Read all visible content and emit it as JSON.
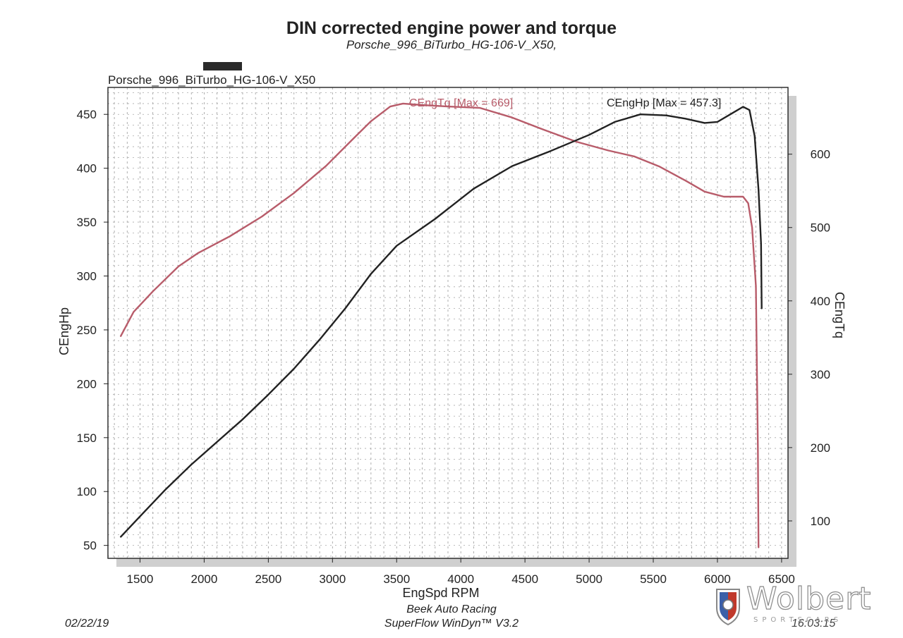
{
  "header": {
    "title": "DIN corrected engine power and torque",
    "subtitle": "Porsche_996_BiTurbo_HG-106-V_X50,",
    "run_label": "Porsche_996_BiTurbo_HG-106-V_X50"
  },
  "footer": {
    "date": "02/22/19",
    "shop": "Beek Auto Racing",
    "software": "SuperFlow WinDyn™ V3.2",
    "time": "16:03:15"
  },
  "logo": {
    "text": "Wolbert",
    "subtext": "SPORTSCARS"
  },
  "chart_data": {
    "type": "line",
    "xlabel": "EngSpd RPM",
    "ylabel": "CEngHp",
    "y2label": "CEngTq",
    "xlim": [
      1250,
      6550
    ],
    "ylim": [
      38,
      475
    ],
    "y2lim": [
      49,
      691
    ],
    "x_ticks": [
      1500,
      2000,
      2500,
      3000,
      3500,
      4000,
      4500,
      5000,
      5500,
      6000,
      6500
    ],
    "y_ticks": [
      50,
      100,
      150,
      200,
      250,
      300,
      350,
      400,
      450
    ],
    "y2_ticks": [
      100,
      200,
      300,
      400,
      500,
      600
    ],
    "grid": true,
    "series": [
      {
        "name": "CEngTq",
        "axis": "right",
        "color": "#b85c6a",
        "label": "CEngTq [Max = 669]",
        "x": [
          1350,
          1450,
          1600,
          1800,
          1950,
          2200,
          2450,
          2700,
          2950,
          3150,
          3300,
          3450,
          3550,
          3700,
          3900,
          4150,
          4400,
          4650,
          4900,
          5150,
          5350,
          5550,
          5750,
          5900,
          6050,
          6200,
          6240,
          6270,
          6300,
          6315,
          6320
        ],
        "y": [
          352,
          385,
          413,
          447,
          465,
          488,
          515,
          547,
          584,
          619,
          645,
          665,
          669,
          667,
          665,
          663,
          650,
          633,
          617,
          605,
          597,
          583,
          564,
          549,
          542,
          542,
          533,
          500,
          420,
          200,
          64
        ]
      },
      {
        "name": "CEngHp",
        "axis": "left",
        "color": "#222222",
        "label": "CEngHp [Max = 457.3]",
        "x": [
          1350,
          1500,
          1700,
          1900,
          2100,
          2300,
          2500,
          2700,
          2900,
          3100,
          3300,
          3500,
          3800,
          4100,
          4400,
          4700,
          5000,
          5200,
          5400,
          5600,
          5750,
          5900,
          6000,
          6100,
          6200,
          6250,
          6290,
          6320,
          6340,
          6345
        ],
        "y": [
          58,
          77,
          102,
          125,
          146,
          167,
          190,
          214,
          241,
          270,
          302,
          328,
          353,
          381,
          402,
          416,
          431,
          443,
          450,
          449,
          446,
          442,
          443,
          450,
          457,
          454,
          430,
          380,
          330,
          270
        ]
      }
    ]
  }
}
